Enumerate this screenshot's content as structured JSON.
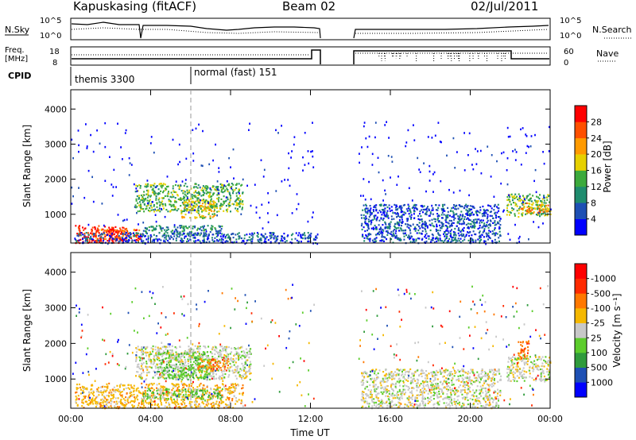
{
  "header": {
    "station": "Kapuskasing (fitACF)",
    "beam": "Beam 02",
    "date": "02/Jul/2011"
  },
  "top_panels": {
    "nsky_label": "N.Sky",
    "nsearch_label": "N.Search",
    "noise_ticks": [
      "10^5",
      "10^0"
    ],
    "freq_label_line1": "Freq.",
    "freq_label_line2": "[MHz]",
    "freq_ticks": [
      "18",
      "8"
    ],
    "nave_ticks": [
      "60",
      "0"
    ],
    "nave_label": "Nave",
    "cpid_label": "CPID",
    "cpid_modes": [
      "themis 3300",
      "normal (fast) 151"
    ]
  },
  "chart_data": [
    {
      "type": "heatmap",
      "title": "Power",
      "ylabel": "Slant Range [km]",
      "xlabel": "Time UT",
      "x_ticks": [
        "00:00",
        "04:00",
        "08:00",
        "12:00",
        "16:00",
        "20:00",
        "00:00"
      ],
      "y_ticks": [
        1000,
        2000,
        3000,
        4000
      ],
      "xlim_hours": [
        0,
        24
      ],
      "ylim_km": [
        180,
        4550
      ],
      "colorbar": {
        "label": "Power [dB]",
        "ticks": [
          "4",
          "8",
          "12",
          "16",
          "20",
          "24",
          "28"
        ],
        "colors": [
          "#0000ff",
          "#1e50b4",
          "#1f8c6e",
          "#3caa3c",
          "#e6d000",
          "#ff9a00",
          "#ff5000",
          "#ff0000"
        ]
      },
      "echo_regions": [
        {
          "t0": 0.2,
          "t1": 2.8,
          "r0": 200,
          "r1": 700,
          "level": 7
        },
        {
          "t0": 1.0,
          "t1": 3.5,
          "r0": 250,
          "r1": 600,
          "level": 6
        },
        {
          "t0": 3.2,
          "t1": 8.6,
          "r0": 1100,
          "r1": 1900,
          "level": 3
        },
        {
          "t0": 5.5,
          "t1": 7.3,
          "r0": 900,
          "r1": 1400,
          "level": 4
        },
        {
          "t0": 3.6,
          "t1": 7.6,
          "r0": 450,
          "r1": 700,
          "level": 2
        },
        {
          "t0": 0.2,
          "t1": 12.3,
          "r0": 200,
          "r1": 500,
          "level": 1
        },
        {
          "t0": 14.5,
          "t1": 21.5,
          "r0": 200,
          "r1": 1300,
          "level": 1
        },
        {
          "t0": 21.8,
          "t1": 24.0,
          "r0": 950,
          "r1": 1600,
          "level": 3
        },
        {
          "t0": 22.5,
          "t1": 23.9,
          "r0": 1050,
          "r1": 1350,
          "level": 5
        }
      ]
    },
    {
      "type": "heatmap",
      "title": "Velocity",
      "ylabel": "Slant Range [km]",
      "xlabel": "Time UT",
      "x_ticks": [
        "00:00",
        "04:00",
        "08:00",
        "12:00",
        "16:00",
        "20:00",
        "00:00"
      ],
      "y_ticks": [
        1000,
        2000,
        3000,
        4000
      ],
      "xlim_hours": [
        0,
        24
      ],
      "ylim_km": [
        180,
        4550
      ],
      "colorbar": {
        "label": "Velocity [m s⁻¹]",
        "ticks": [
          "1000",
          "500",
          "100",
          "25",
          "-25",
          "-100",
          "-500",
          "-1000"
        ],
        "colors": [
          "#0000ff",
          "#1e50b4",
          "#2f9b3c",
          "#5ccd2c",
          "#c8c8c8",
          "#f5b800",
          "#ff7800",
          "#ff2a00",
          "#ff0000"
        ]
      },
      "echo_regions": [
        {
          "t0": 0.2,
          "t1": 8.6,
          "r0": 200,
          "r1": 900,
          "color_index": 5
        },
        {
          "t0": 3.2,
          "t1": 9.0,
          "r0": 1000,
          "r1": 1950,
          "color_index": 4
        },
        {
          "t0": 4.3,
          "t1": 7.0,
          "r0": 1000,
          "r1": 1800,
          "color_index": 3
        },
        {
          "t0": 6.3,
          "t1": 7.9,
          "r0": 1250,
          "r1": 1600,
          "color_index": 6
        },
        {
          "t0": 3.6,
          "t1": 7.6,
          "r0": 450,
          "r1": 750,
          "color_index": 3
        },
        {
          "t0": 14.5,
          "t1": 21.5,
          "r0": 200,
          "r1": 1300,
          "color_index": 4
        },
        {
          "t0": 21.8,
          "t1": 24.0,
          "r0": 950,
          "r1": 1650,
          "color_index": 4
        },
        {
          "t0": 22.3,
          "t1": 22.9,
          "r0": 1600,
          "r1": 2100,
          "color_index": 6
        }
      ]
    }
  ]
}
